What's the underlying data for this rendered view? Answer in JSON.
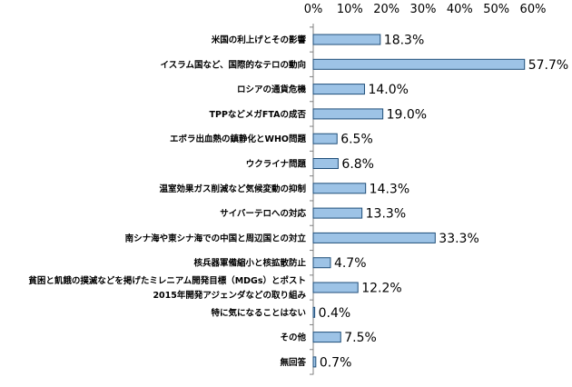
{
  "chart_data": {
    "type": "bar",
    "orientation": "horizontal",
    "categories": [
      [
        "米国の利上げとその影響"
      ],
      [
        "イスラム国など、国際的なテロの動向"
      ],
      [
        "ロシアの通貨危機"
      ],
      [
        "TPPなどメガFTAの成否"
      ],
      [
        "エボラ出血熱の鎮静化とWHO問題"
      ],
      [
        "ウクライナ問題"
      ],
      [
        "温室効果ガス削減など気候変動の抑制"
      ],
      [
        "サイバーテロへの対応"
      ],
      [
        "南シナ海や東シナ海での中国と周辺国との対立"
      ],
      [
        "核兵器軍備縮小と核拡散防止"
      ],
      [
        "貧困と飢餓の撲滅などを掲げたミレニアム開発目標（MDGs）とポスト",
        "2015年開発アジェンダなどの取り組み"
      ],
      [
        "特に気になることはない"
      ],
      [
        "その他"
      ],
      [
        "無回答"
      ]
    ],
    "values": [
      18.3,
      57.7,
      14.0,
      19.0,
      6.5,
      6.8,
      14.3,
      13.3,
      33.3,
      4.7,
      12.2,
      0.4,
      7.5,
      0.7
    ],
    "value_labels": [
      "18.3%",
      "57.7%",
      "14.0%",
      "19.0%",
      "6.5%",
      "6.8%",
      "14.3%",
      "13.3%",
      "33.3%",
      "4.7%",
      "12.2%",
      "0.4%",
      "7.5%",
      "0.7%"
    ],
    "xlim": [
      0,
      60
    ],
    "xticks": [
      0,
      10,
      20,
      30,
      40,
      50,
      60
    ],
    "xtick_labels": [
      "0%",
      "10%",
      "20%",
      "30%",
      "40%",
      "50%",
      "60%"
    ],
    "x_axis_position": "top",
    "grid": false,
    "legend": "none",
    "colors": {
      "bar_fill": "#9dc3e6",
      "bar_stroke": "#1f4e79",
      "axis": "#808080"
    }
  }
}
